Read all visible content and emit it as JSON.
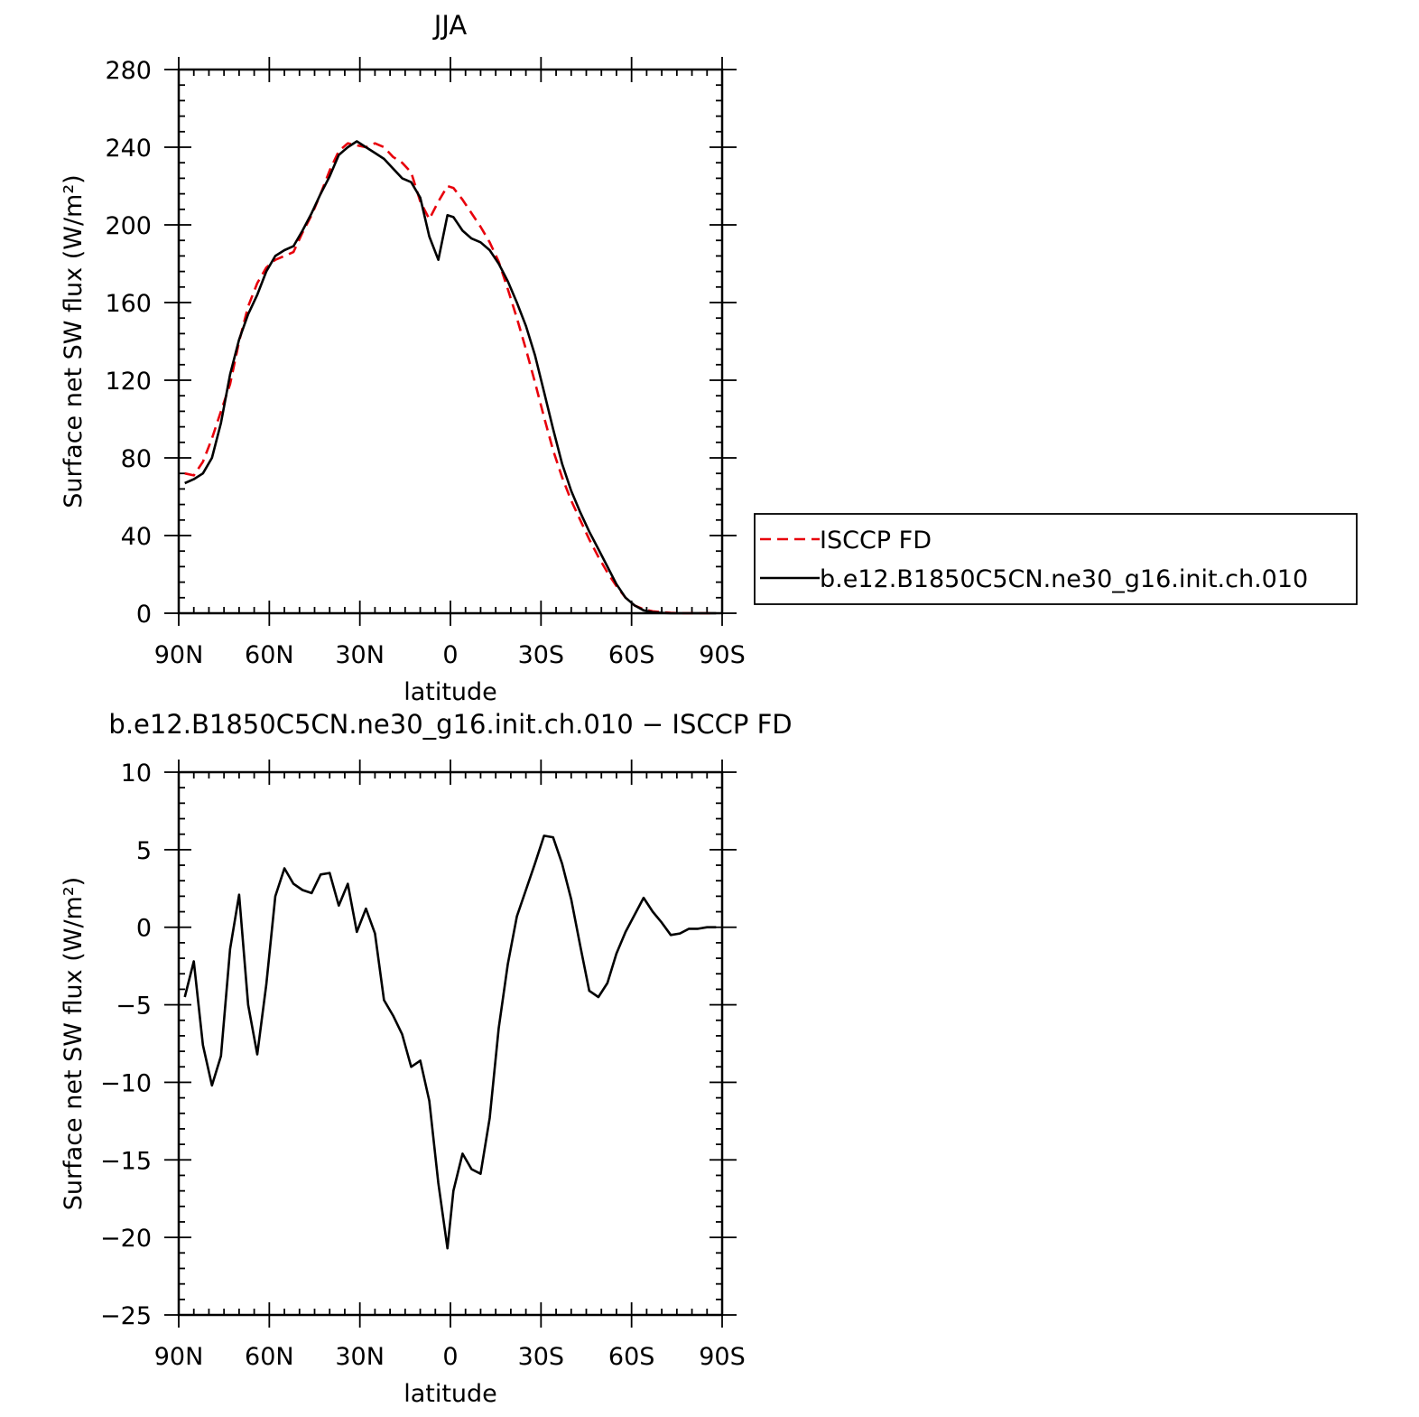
{
  "chart_data": [
    {
      "type": "line",
      "title": "JJA",
      "xlabel": "latitude",
      "ylabel": "Surface net SW flux (W/m²)",
      "xlim": [
        90,
        -90
      ],
      "ylim": [
        0,
        280
      ],
      "x_ticks": [
        {
          "value": 90,
          "label": "90N"
        },
        {
          "value": 60,
          "label": "60N"
        },
        {
          "value": 30,
          "label": "30N"
        },
        {
          "value": 0,
          "label": "0"
        },
        {
          "value": -30,
          "label": "30S"
        },
        {
          "value": -60,
          "label": "60S"
        },
        {
          "value": -90,
          "label": "90S"
        }
      ],
      "y_ticks": [
        0,
        40,
        80,
        120,
        160,
        200,
        240,
        280
      ],
      "legend": {
        "placement": "right"
      },
      "series": [
        {
          "name": "ISCCP FD",
          "color": "#e8000b",
          "dash": "dashed",
          "x": [
            88,
            85,
            82,
            79,
            76,
            73,
            70,
            67,
            64,
            61,
            58,
            55,
            52,
            49,
            46,
            43,
            40,
            37,
            34,
            31,
            28,
            25,
            22,
            19,
            16,
            13,
            10,
            7,
            4,
            1,
            -1,
            -4,
            -7,
            -10,
            -13,
            -16,
            -19,
            -22,
            -25,
            -28,
            -31,
            -34,
            -37,
            -40,
            -43,
            -46,
            -49,
            -52,
            -55,
            -58,
            -61,
            -64,
            -67,
            -70,
            -73,
            -76,
            -79,
            -82,
            -85,
            -88
          ],
          "y": [
            72,
            71,
            78,
            90,
            104,
            118,
            140,
            158,
            170,
            178,
            182,
            184,
            186,
            196,
            205,
            216,
            228,
            238,
            242,
            241,
            240,
            242,
            240,
            235,
            232,
            227,
            212,
            203,
            212,
            220,
            219,
            213,
            206,
            199,
            191,
            181,
            167,
            152,
            136,
            119,
            101,
            84,
            70,
            58,
            48,
            38,
            29,
            21,
            14,
            8,
            4,
            2,
            1,
            0.5,
            0.2,
            0,
            0,
            0,
            0,
            0
          ]
        },
        {
          "name": "b.e12.B1850C5CN.ne30_g16.init.ch.010",
          "color": "#000000",
          "dash": "solid",
          "x": [
            88,
            85,
            82,
            79,
            76,
            73,
            70,
            67,
            64,
            61,
            58,
            55,
            52,
            49,
            46,
            43,
            40,
            37,
            34,
            31,
            28,
            25,
            22,
            19,
            16,
            13,
            10,
            7,
            4,
            1,
            -1,
            -4,
            -7,
            -10,
            -13,
            -16,
            -19,
            -22,
            -25,
            -28,
            -31,
            -34,
            -37,
            -40,
            -43,
            -46,
            -49,
            -52,
            -55,
            -58,
            -61,
            -64,
            -67,
            -70,
            -73,
            -76,
            -79,
            -82,
            -85,
            -88
          ],
          "y": [
            67,
            69,
            72,
            80,
            98,
            123,
            141,
            154,
            164,
            176,
            184,
            187,
            189,
            197,
            206,
            216,
            225,
            236,
            240,
            243,
            240,
            237,
            234,
            229,
            224,
            222,
            214,
            194,
            182,
            205,
            204,
            197,
            193,
            191,
            187,
            180,
            171,
            160,
            148,
            133,
            114,
            95,
            77,
            63,
            52,
            42,
            33,
            24,
            15,
            8,
            4,
            1.5,
            0.5,
            0.2,
            0,
            0,
            0,
            0,
            0,
            0
          ]
        }
      ]
    },
    {
      "type": "line",
      "title": "b.e12.B1850C5CN.ne30_g16.init.ch.010 − ISCCP FD",
      "xlabel": "latitude",
      "ylabel": "Surface net SW flux (W/m²)",
      "xlim": [
        90,
        -90
      ],
      "ylim": [
        -25,
        10
      ],
      "x_ticks": [
        {
          "value": 90,
          "label": "90N"
        },
        {
          "value": 60,
          "label": "60N"
        },
        {
          "value": 30,
          "label": "30N"
        },
        {
          "value": 0,
          "label": "0"
        },
        {
          "value": -30,
          "label": "30S"
        },
        {
          "value": -60,
          "label": "60S"
        },
        {
          "value": -90,
          "label": "90S"
        }
      ],
      "y_ticks": [
        -25,
        -20,
        -15,
        -10,
        -5,
        0,
        5,
        10
      ],
      "series": [
        {
          "color": "#000000",
          "dash": "solid",
          "x": [
            88,
            85,
            82,
            79,
            76,
            73,
            70,
            67,
            64,
            61,
            58,
            55,
            52,
            49,
            46,
            43,
            40,
            37,
            34,
            31,
            28,
            25,
            22,
            19,
            16,
            13,
            10,
            7,
            4,
            1,
            -1,
            -4,
            -7,
            -10,
            -13,
            -16,
            -19,
            -22,
            -25,
            -28,
            -31,
            -34,
            -37,
            -40,
            -43,
            -46,
            -49,
            -52,
            -55,
            -58,
            -61,
            -64,
            -67,
            -70,
            -73,
            -76,
            -79,
            -82,
            -85,
            -88
          ],
          "y": [
            -4.5,
            -2.2,
            -7.6,
            -10.2,
            -8.3,
            -1.4,
            2.1,
            -5,
            -8.2,
            -3.7,
            2,
            3.8,
            2.8,
            2.4,
            2.2,
            3.4,
            3.5,
            1.4,
            2.8,
            -0.3,
            1.2,
            -0.4,
            -4.7,
            -5.7,
            -6.9,
            -9,
            -8.6,
            -11.2,
            -16.5,
            -20.7,
            -17,
            -14.6,
            -15.6,
            -15.9,
            -12.3,
            -6.5,
            -2.4,
            0.7,
            2.4,
            4.1,
            5.9,
            5.8,
            4.1,
            1.8,
            -1.2,
            -4.1,
            -4.5,
            -3.6,
            -1.7,
            -0.3,
            0.8,
            1.9,
            1,
            0.3,
            -0.5,
            -0.4,
            -0.1,
            -0.1,
            0,
            0
          ]
        }
      ]
    }
  ]
}
